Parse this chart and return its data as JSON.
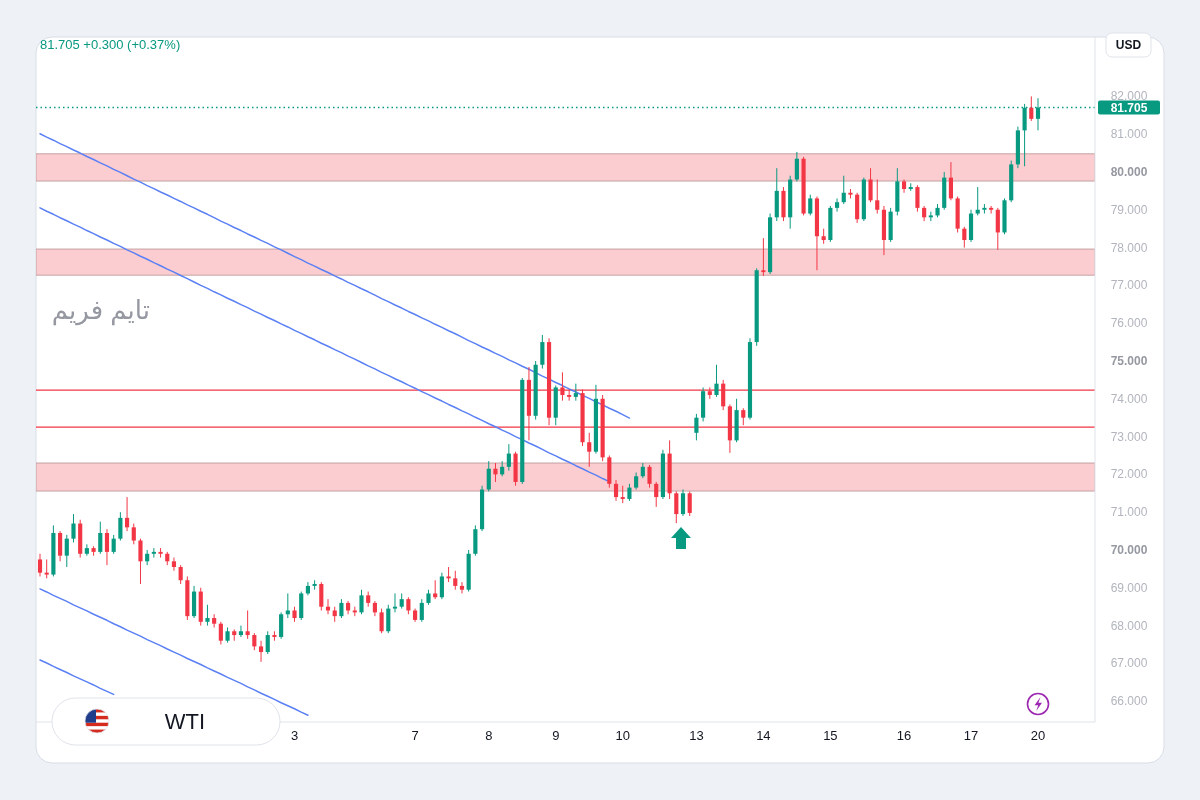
{
  "chart_data": {
    "type": "candlestick",
    "title": "WTI",
    "subtitle": "81.705 +0.300 (+0.37%)",
    "ylabel": "USD",
    "annotations": [
      "تایم فریم"
    ],
    "categories": [
      null,
      null,
      null,
      null,
      null,
      null,
      null,
      null,
      null,
      null,
      null,
      null,
      null,
      null,
      null,
      null,
      null,
      null,
      null,
      null,
      null,
      null,
      null,
      null,
      null,
      null,
      null,
      null,
      null,
      null,
      null,
      null,
      null,
      null,
      null,
      null,
      null,
      null,
      "3",
      null,
      null,
      null,
      null,
      null,
      null,
      null,
      null,
      null,
      null,
      null,
      null,
      null,
      null,
      null,
      null,
      null,
      "7",
      null,
      null,
      null,
      null,
      null,
      null,
      null,
      null,
      null,
      null,
      "8",
      null,
      null,
      null,
      null,
      null,
      null,
      null,
      null,
      null,
      "9",
      null,
      null,
      null,
      null,
      null,
      null,
      null,
      null,
      null,
      "10",
      null,
      null,
      null,
      null,
      null,
      null,
      null,
      null,
      null,
      null,
      "13",
      null,
      null,
      null,
      null,
      null,
      null,
      null,
      null,
      null,
      "14",
      null,
      null,
      null,
      null,
      null,
      null,
      null,
      null,
      null,
      "15",
      null,
      null,
      null,
      null,
      null,
      null,
      null,
      null,
      null,
      null,
      "16",
      null,
      null,
      null,
      null,
      null,
      null,
      null,
      null,
      null,
      "17",
      null,
      null,
      null,
      null,
      null,
      null,
      null,
      null,
      null,
      "20"
    ],
    "ohlc": [
      [
        69.75,
        69.9,
        69.3,
        69.4
      ],
      [
        69.4,
        69.75,
        69.25,
        69.35
      ],
      [
        69.35,
        70.65,
        69.3,
        70.45
      ],
      [
        70.45,
        70.5,
        69.7,
        69.85
      ],
      [
        69.85,
        70.4,
        69.55,
        70.3
      ],
      [
        70.3,
        70.95,
        70.2,
        70.7
      ],
      [
        70.7,
        70.8,
        69.8,
        69.9
      ],
      [
        69.9,
        70.15,
        69.85,
        70.05
      ],
      [
        70.05,
        70.1,
        69.85,
        69.95
      ],
      [
        69.95,
        70.75,
        69.9,
        70.45
      ],
      [
        70.45,
        70.55,
        69.6,
        69.95
      ],
      [
        69.95,
        70.4,
        69.9,
        70.3
      ],
      [
        70.3,
        71.0,
        70.25,
        70.85
      ],
      [
        70.85,
        71.4,
        70.5,
        70.6
      ],
      [
        70.6,
        70.7,
        70.15,
        70.25
      ],
      [
        70.25,
        70.3,
        69.1,
        69.7
      ],
      [
        69.7,
        70.0,
        69.6,
        69.9
      ],
      [
        69.9,
        70.05,
        69.8,
        69.95
      ],
      [
        69.95,
        70.05,
        69.8,
        69.9
      ],
      [
        69.9,
        69.95,
        69.6,
        69.7
      ],
      [
        69.7,
        69.8,
        69.45,
        69.55
      ],
      [
        69.55,
        69.6,
        69.1,
        69.2
      ],
      [
        69.2,
        69.3,
        68.15,
        68.25
      ],
      [
        68.25,
        69.05,
        68.2,
        68.9
      ],
      [
        68.9,
        69.0,
        68.0,
        68.1
      ],
      [
        68.1,
        68.55,
        68.0,
        68.2
      ],
      [
        68.2,
        68.3,
        67.95,
        68.05
      ],
      [
        68.05,
        68.1,
        67.5,
        67.6
      ],
      [
        67.6,
        67.95,
        67.55,
        67.85
      ],
      [
        67.85,
        67.9,
        67.6,
        67.75
      ],
      [
        67.75,
        68.0,
        67.7,
        67.85
      ],
      [
        67.85,
        68.4,
        67.65,
        67.75
      ],
      [
        67.75,
        67.8,
        67.35,
        67.45
      ],
      [
        67.45,
        67.6,
        67.04,
        67.3
      ],
      [
        67.3,
        67.85,
        67.25,
        67.75
      ],
      [
        67.75,
        67.85,
        67.6,
        67.7
      ],
      [
        67.7,
        68.35,
        67.65,
        68.3
      ],
      [
        68.3,
        68.85,
        68.2,
        68.4
      ],
      [
        68.4,
        68.5,
        68.1,
        68.2
      ],
      [
        68.2,
        68.9,
        68.15,
        68.85
      ],
      [
        68.85,
        69.15,
        68.8,
        69.05
      ],
      [
        69.05,
        69.2,
        68.95,
        69.1
      ],
      [
        69.1,
        69.15,
        68.4,
        68.5
      ],
      [
        68.5,
        68.7,
        68.3,
        68.4
      ],
      [
        68.4,
        68.5,
        68.1,
        68.25
      ],
      [
        68.25,
        68.7,
        68.2,
        68.6
      ],
      [
        68.6,
        68.65,
        68.3,
        68.4
      ],
      [
        68.4,
        68.5,
        68.25,
        68.35
      ],
      [
        68.35,
        68.95,
        68.3,
        68.8
      ],
      [
        68.8,
        68.9,
        68.5,
        68.6
      ],
      [
        68.6,
        68.65,
        68.25,
        68.35
      ],
      [
        68.35,
        68.45,
        67.8,
        67.85
      ],
      [
        67.85,
        68.55,
        67.8,
        68.45
      ],
      [
        68.45,
        68.85,
        68.35,
        68.5
      ],
      [
        68.5,
        68.85,
        68.45,
        68.7
      ],
      [
        68.7,
        68.75,
        68.3,
        68.4
      ],
      [
        68.4,
        68.45,
        68.1,
        68.15
      ],
      [
        68.15,
        68.7,
        68.1,
        68.6
      ],
      [
        68.6,
        68.95,
        68.55,
        68.85
      ],
      [
        68.85,
        69.2,
        68.7,
        68.75
      ],
      [
        68.75,
        69.4,
        68.7,
        69.3
      ],
      [
        69.3,
        69.55,
        69.15,
        69.25
      ],
      [
        69.25,
        69.45,
        68.95,
        69.05
      ],
      [
        69.05,
        69.15,
        68.85,
        68.95
      ],
      [
        68.95,
        70.0,
        68.9,
        69.9
      ],
      [
        69.9,
        70.65,
        69.85,
        70.55
      ],
      [
        70.55,
        71.7,
        70.5,
        71.6
      ],
      [
        71.6,
        72.35,
        71.55,
        72.15
      ],
      [
        72.15,
        72.3,
        71.8,
        72.0
      ],
      [
        72.0,
        72.35,
        71.95,
        72.2
      ],
      [
        72.2,
        72.8,
        72.1,
        72.55
      ],
      [
        72.55,
        72.6,
        71.7,
        71.8
      ],
      [
        71.8,
        74.55,
        71.75,
        74.5
      ],
      [
        74.5,
        74.84,
        72.9,
        73.55
      ],
      [
        73.55,
        75.0,
        73.45,
        74.9
      ],
      [
        74.9,
        75.69,
        74.8,
        75.5
      ],
      [
        75.5,
        75.6,
        73.3,
        73.5
      ],
      [
        73.5,
        74.35,
        73.3,
        74.3
      ],
      [
        74.3,
        74.7,
        73.95,
        74.1
      ],
      [
        74.1,
        74.25,
        73.95,
        74.05
      ],
      [
        74.05,
        74.4,
        73.95,
        74.15
      ],
      [
        74.15,
        74.25,
        72.75,
        72.85
      ],
      [
        72.85,
        73.1,
        72.2,
        72.6
      ],
      [
        72.6,
        74.37,
        72.55,
        74.0
      ],
      [
        74.0,
        74.1,
        72.35,
        72.45
      ],
      [
        72.45,
        72.5,
        71.65,
        71.75
      ],
      [
        71.75,
        71.85,
        71.3,
        71.4
      ],
      [
        71.4,
        71.7,
        71.24,
        71.35
      ],
      [
        71.35,
        71.75,
        71.3,
        71.65
      ],
      [
        71.65,
        72.05,
        71.6,
        71.95
      ],
      [
        71.95,
        72.3,
        71.9,
        72.2
      ],
      [
        72.2,
        72.25,
        71.65,
        71.75
      ],
      [
        71.75,
        71.8,
        71.14,
        71.4
      ],
      [
        71.4,
        72.65,
        71.35,
        72.55
      ],
      [
        72.55,
        72.9,
        71.35,
        71.5
      ],
      [
        71.5,
        71.55,
        70.71,
        70.95
      ],
      [
        70.95,
        71.6,
        70.9,
        71.5
      ],
      [
        71.5,
        71.55,
        70.9,
        70.98
      ],
      [
        73.1,
        73.6,
        72.9,
        73.5
      ],
      [
        73.5,
        74.3,
        73.4,
        74.2
      ],
      [
        74.2,
        74.3,
        74.0,
        74.1
      ],
      [
        74.1,
        74.9,
        74.05,
        74.4
      ],
      [
        74.4,
        74.5,
        73.7,
        73.8
      ],
      [
        73.8,
        73.85,
        72.57,
        72.9
      ],
      [
        72.9,
        74.0,
        72.85,
        73.7
      ],
      [
        73.7,
        73.75,
        73.3,
        73.5
      ],
      [
        73.5,
        75.6,
        73.45,
        75.5
      ],
      [
        75.5,
        77.45,
        75.4,
        77.4
      ],
      [
        77.4,
        78.25,
        77.25,
        77.35
      ],
      [
        77.35,
        78.9,
        77.3,
        78.8
      ],
      [
        78.8,
        80.1,
        78.7,
        79.5
      ],
      [
        79.5,
        79.6,
        78.7,
        78.8
      ],
      [
        78.8,
        79.9,
        78.5,
        79.8
      ],
      [
        79.8,
        80.53,
        79.75,
        80.35
      ],
      [
        80.35,
        80.4,
        78.85,
        78.9
      ],
      [
        78.9,
        79.4,
        78.85,
        79.3
      ],
      [
        79.3,
        79.35,
        77.4,
        78.3
      ],
      [
        78.3,
        78.5,
        78.1,
        78.2
      ],
      [
        78.2,
        79.1,
        78.15,
        79.05
      ],
      [
        79.05,
        79.3,
        78.95,
        79.2
      ],
      [
        79.2,
        79.9,
        79.15,
        79.45
      ],
      [
        79.45,
        79.55,
        79.3,
        79.4
      ],
      [
        79.4,
        79.45,
        78.65,
        78.75
      ],
      [
        78.75,
        79.85,
        78.7,
        79.8
      ],
      [
        79.8,
        80.1,
        79.2,
        79.25
      ],
      [
        79.25,
        79.8,
        78.9,
        79.0
      ],
      [
        79.0,
        79.1,
        77.8,
        78.2
      ],
      [
        78.2,
        79.05,
        78.15,
        78.95
      ],
      [
        78.95,
        80.1,
        78.85,
        79.75
      ],
      [
        79.75,
        79.8,
        79.45,
        79.55
      ],
      [
        79.55,
        79.7,
        79.5,
        79.6
      ],
      [
        79.6,
        79.65,
        78.95,
        79.05
      ],
      [
        79.05,
        79.1,
        78.7,
        78.8
      ],
      [
        78.8,
        78.95,
        78.7,
        78.85
      ],
      [
        78.85,
        79.15,
        78.8,
        79.05
      ],
      [
        79.05,
        80.0,
        79.0,
        79.85
      ],
      [
        79.85,
        80.26,
        79.25,
        79.3
      ],
      [
        79.3,
        79.35,
        78.4,
        78.5
      ],
      [
        78.5,
        78.55,
        78.0,
        78.2
      ],
      [
        78.2,
        79.0,
        78.15,
        78.9
      ],
      [
        78.9,
        79.6,
        78.85,
        79.0
      ],
      [
        79.0,
        79.15,
        78.9,
        79.05
      ],
      [
        79.05,
        79.1,
        78.9,
        79.0
      ],
      [
        79.0,
        79.05,
        77.94,
        78.4
      ],
      [
        78.4,
        79.3,
        78.35,
        79.25
      ],
      [
        79.25,
        80.3,
        79.2,
        80.2
      ],
      [
        80.2,
        81.2,
        80.1,
        81.1
      ],
      [
        81.1,
        81.8,
        80.15,
        81.7
      ],
      [
        81.7,
        82.0,
        81.35,
        81.405
      ],
      [
        81.405,
        81.95,
        81.1,
        81.705
      ]
    ],
    "colors": [
      "#f23645",
      "#f23645",
      "#089981",
      "#f23645",
      "#089981",
      "#089981",
      "#f23645",
      "#089981",
      "#f23645",
      "#089981",
      "#f23645",
      "#089981",
      "#089981",
      "#f23645",
      "#f23645",
      "#f23645",
      "#089981",
      "#089981",
      "#f23645",
      "#f23645",
      "#f23645",
      "#f23645",
      "#f23645",
      "#089981",
      "#f23645",
      "#089981",
      "#f23645",
      "#f23645",
      "#089981",
      "#f23645",
      "#089981",
      "#f23645",
      "#f23645",
      "#f23645",
      "#089981",
      "#f23645",
      "#089981",
      "#089981",
      "#f23645",
      "#089981",
      "#089981",
      "#089981",
      "#f23645",
      "#f23645",
      "#f23645",
      "#089981",
      "#f23645",
      "#f23645",
      "#089981",
      "#f23645",
      "#f23645",
      "#f23645",
      "#089981",
      "#089981",
      "#089981",
      "#f23645",
      "#f23645",
      "#089981",
      "#089981",
      "#f23645",
      "#089981",
      "#f23645",
      "#f23645",
      "#f23645",
      "#089981",
      "#089981",
      "#089981",
      "#089981",
      "#f23645",
      "#089981",
      "#089981",
      "#f23645",
      "#089981",
      "#f23645",
      "#089981",
      "#089981",
      "#f23645",
      "#089981",
      "#f23645",
      "#f23645",
      "#089981",
      "#f23645",
      "#f23645",
      "#089981",
      "#f23645",
      "#f23645",
      "#f23645",
      "#f23645",
      "#089981",
      "#089981",
      "#089981",
      "#f23645",
      "#f23645",
      "#089981",
      "#f23645",
      "#f23645",
      "#089981",
      "#f23645",
      "#089981",
      "#089981",
      "#f23645",
      "#089981",
      "#f23645",
      "#f23645",
      "#089981",
      "#f23645",
      "#089981",
      "#089981",
      "#f23645",
      "#089981",
      "#089981",
      "#f23645",
      "#089981",
      "#089981",
      "#f23645",
      "#089981",
      "#f23645",
      "#f23645",
      "#089981",
      "#089981",
      "#089981",
      "#f23645",
      "#f23645",
      "#089981",
      "#f23645",
      "#f23645",
      "#f23645",
      "#089981",
      "#089981",
      "#f23645",
      "#089981",
      "#f23645",
      "#f23645",
      "#089981",
      "#089981",
      "#089981",
      "#f23645",
      "#f23645",
      "#f23645",
      "#089981",
      "#089981",
      "#089981",
      "#f23645",
      "#f23645",
      "#089981",
      "#089981",
      "#089981",
      "#089981",
      "#f23645",
      "#089981"
    ],
    "series": [
      {
        "type": "line",
        "color": "#5b80f4",
        "values": [
          81.01,
          80.92,
          80.84,
          80.75,
          80.67,
          80.58,
          80.5,
          80.41,
          80.33,
          80.24,
          80.16,
          80.07,
          79.99,
          79.9,
          79.81,
          79.73,
          79.64,
          79.56,
          79.47,
          79.39,
          79.3,
          79.22,
          79.13,
          79.05,
          78.96,
          78.88,
          78.79,
          78.7,
          78.62,
          78.53,
          78.45,
          78.36,
          78.28,
          78.19,
          78.11,
          78.02,
          77.94,
          77.85,
          77.76,
          77.68,
          77.59,
          77.51,
          77.42,
          77.34,
          77.25,
          77.17,
          77.08,
          77.0,
          76.91,
          76.83,
          76.74,
          76.65,
          76.57,
          76.48,
          76.4,
          76.31,
          76.23,
          76.14,
          76.06,
          75.97,
          75.89,
          75.8,
          75.72,
          75.63,
          75.54,
          75.46,
          75.37,
          75.29,
          75.2,
          75.12,
          75.03,
          74.95,
          74.86,
          74.78,
          74.69,
          74.6,
          74.52,
          74.43,
          74.35,
          74.26,
          74.18,
          74.09,
          74.01,
          73.92,
          73.84,
          73.75,
          73.67,
          73.58,
          73.49,
          null,
          null,
          null,
          null,
          null,
          null,
          null,
          null,
          null,
          null,
          null,
          null,
          null,
          null,
          null,
          null,
          null,
          null,
          null,
          null,
          null,
          null,
          null,
          null,
          null,
          null,
          null,
          null,
          null,
          null,
          null,
          null,
          null,
          null,
          null,
          null,
          null,
          null,
          null,
          null,
          null,
          null,
          null,
          null,
          null,
          null,
          null,
          null,
          null,
          null,
          null,
          null,
          null,
          null,
          null,
          null,
          null,
          null,
          null,
          null,
          null
        ]
      },
      {
        "type": "line",
        "color": "#5b80f4",
        "values": [
          79.05,
          78.96,
          78.88,
          78.79,
          78.71,
          78.62,
          78.54,
          78.45,
          78.37,
          78.28,
          78.2,
          78.11,
          78.03,
          77.94,
          77.86,
          77.77,
          77.69,
          77.6,
          77.52,
          77.43,
          77.35,
          77.26,
          77.18,
          77.09,
          77.0,
          76.92,
          76.83,
          76.75,
          76.66,
          76.58,
          76.49,
          76.41,
          76.32,
          76.24,
          76.15,
          76.07,
          75.98,
          75.9,
          75.81,
          75.73,
          75.64,
          75.56,
          75.47,
          75.39,
          75.3,
          75.22,
          75.13,
          75.05,
          74.96,
          74.87,
          74.79,
          74.7,
          74.62,
          74.53,
          74.45,
          74.36,
          74.28,
          74.19,
          74.11,
          74.02,
          73.94,
          73.85,
          73.77,
          73.68,
          73.6,
          73.51,
          73.43,
          73.34,
          73.26,
          73.17,
          73.09,
          73.0,
          72.92,
          72.83,
          72.75,
          72.66,
          72.57,
          72.49,
          72.4,
          72.32,
          72.23,
          72.15,
          72.06,
          71.98,
          71.89,
          71.81,
          null,
          null,
          null,
          null,
          null,
          null,
          null,
          null,
          null,
          null,
          null,
          null,
          null,
          null,
          null,
          null,
          null,
          null,
          null,
          null,
          null,
          null,
          null,
          null,
          null,
          null,
          null,
          null,
          null,
          null,
          null,
          null,
          null,
          null,
          null,
          null,
          null,
          null,
          null,
          null,
          null,
          null,
          null,
          null,
          null,
          null,
          null,
          null,
          null,
          null,
          null,
          null,
          null,
          null,
          null,
          null,
          null,
          null,
          null,
          null,
          null,
          null,
          null,
          null
        ]
      },
      {
        "type": "line",
        "color": "#5b80f4",
        "values": [
          68.97,
          68.89,
          68.8,
          68.72,
          68.64,
          68.55,
          68.47,
          68.39,
          68.3,
          68.22,
          68.14,
          68.05,
          67.97,
          67.88,
          67.8,
          67.72,
          67.63,
          67.55,
          67.47,
          67.38,
          67.3,
          67.22,
          67.13,
          67.05,
          66.97,
          66.88,
          66.8,
          66.72,
          66.63,
          66.55,
          66.47,
          66.38,
          66.3,
          66.21,
          66.13,
          66.05,
          65.96,
          65.88,
          65.8,
          65.71,
          65.63,
          null,
          null,
          null,
          null,
          null,
          null,
          null,
          null,
          null,
          null,
          null,
          null,
          null,
          null,
          null,
          null,
          null,
          null,
          null,
          null,
          null,
          null,
          null,
          null,
          null,
          null,
          null,
          null,
          null,
          null,
          null,
          null,
          null,
          null,
          null,
          null,
          null,
          null,
          null,
          null,
          null,
          null,
          null,
          null,
          null,
          null,
          null,
          null,
          null,
          null,
          null,
          null,
          null,
          null,
          null,
          null,
          null,
          null,
          null,
          null,
          null,
          null,
          null,
          null,
          null,
          null,
          null,
          null,
          null,
          null,
          null,
          null,
          null,
          null,
          null,
          null,
          null,
          null,
          null,
          null,
          null,
          null,
          null,
          null,
          null,
          null,
          null,
          null,
          null,
          null,
          null,
          null,
          null,
          null,
          null,
          null,
          null,
          null,
          null,
          null,
          null,
          null,
          null,
          null,
          null,
          null,
          null,
          null,
          null
        ]
      },
      {
        "type": "line",
        "color": "#5b80f4",
        "values": [
          67.09,
          67.01,
          66.92,
          66.84,
          66.76,
          66.67,
          66.59,
          66.51,
          66.43,
          66.34,
          66.26,
          66.18,
          null,
          null,
          null,
          null,
          null,
          null,
          null,
          null,
          null,
          null,
          null,
          null,
          null,
          null,
          null,
          null,
          null,
          null,
          null,
          null,
          null,
          null,
          null,
          null,
          null,
          null,
          null,
          null,
          null,
          null,
          null,
          null,
          null,
          null,
          null,
          null,
          null,
          null,
          null,
          null,
          null,
          null,
          null,
          null,
          null,
          null,
          null,
          null,
          null,
          null,
          null,
          null,
          null,
          null,
          null,
          null,
          null,
          null,
          null,
          null,
          null,
          null,
          null,
          null,
          null,
          null,
          null,
          null,
          null,
          null,
          null,
          null,
          null,
          null,
          null,
          null,
          null,
          null,
          null,
          null,
          null,
          null,
          null,
          null,
          null,
          null,
          null,
          null,
          null,
          null,
          null,
          null,
          null,
          null,
          null,
          null,
          null,
          null,
          null,
          null,
          null,
          null,
          null,
          null,
          null,
          null,
          null,
          null,
          null,
          null,
          null,
          null,
          null,
          null,
          null,
          null,
          null,
          null,
          null,
          null,
          null,
          null,
          null,
          null,
          null,
          null,
          null,
          null,
          null,
          null,
          null,
          null,
          null,
          null,
          null,
          null,
          null,
          null
        ]
      }
    ],
    "bands": [
      {
        "axis": "y",
        "from": 79.76,
        "to": 80.48,
        "color": "#fccdd0"
      },
      {
        "axis": "y",
        "from": 77.27,
        "to": 77.96,
        "color": "#fccdd0"
      },
      {
        "axis": "y",
        "from": 71.56,
        "to": 72.3,
        "color": "#fccdd0"
      }
    ],
    "ref_lines": [
      {
        "axis": "y",
        "value": 74.23,
        "color": "#f23645"
      },
      {
        "axis": "y",
        "value": 73.25,
        "color": "#f23645"
      },
      {
        "axis": "y",
        "value": 81.705,
        "label": "81.705",
        "color": "#089981",
        "line_style": "dotted"
      }
    ],
    "ylim": [
      65.45,
      83.57
    ],
    "yticks": [
      {
        "value": 66,
        "label": "66.000"
      },
      {
        "value": 67,
        "label": "67.000"
      },
      {
        "value": 68,
        "label": "68.000"
      },
      {
        "value": 69,
        "label": "69.000"
      },
      {
        "value": 70,
        "label": "70.000"
      },
      {
        "value": 71,
        "label": "71.000"
      },
      {
        "value": 72,
        "label": "72.000"
      },
      {
        "value": 73,
        "label": "73.000"
      },
      {
        "value": 74,
        "label": "74.000"
      },
      {
        "value": 75,
        "label": "75.000"
      },
      {
        "value": 76,
        "label": "76.000"
      },
      {
        "value": 77,
        "label": "77.000"
      },
      {
        "value": 78,
        "label": "78.000"
      },
      {
        "value": 79,
        "label": "79.000"
      },
      {
        "value": 80,
        "label": "80.000"
      },
      {
        "value": 81,
        "label": "81.000"
      },
      {
        "value": 82,
        "label": "82.000"
      }
    ]
  }
}
